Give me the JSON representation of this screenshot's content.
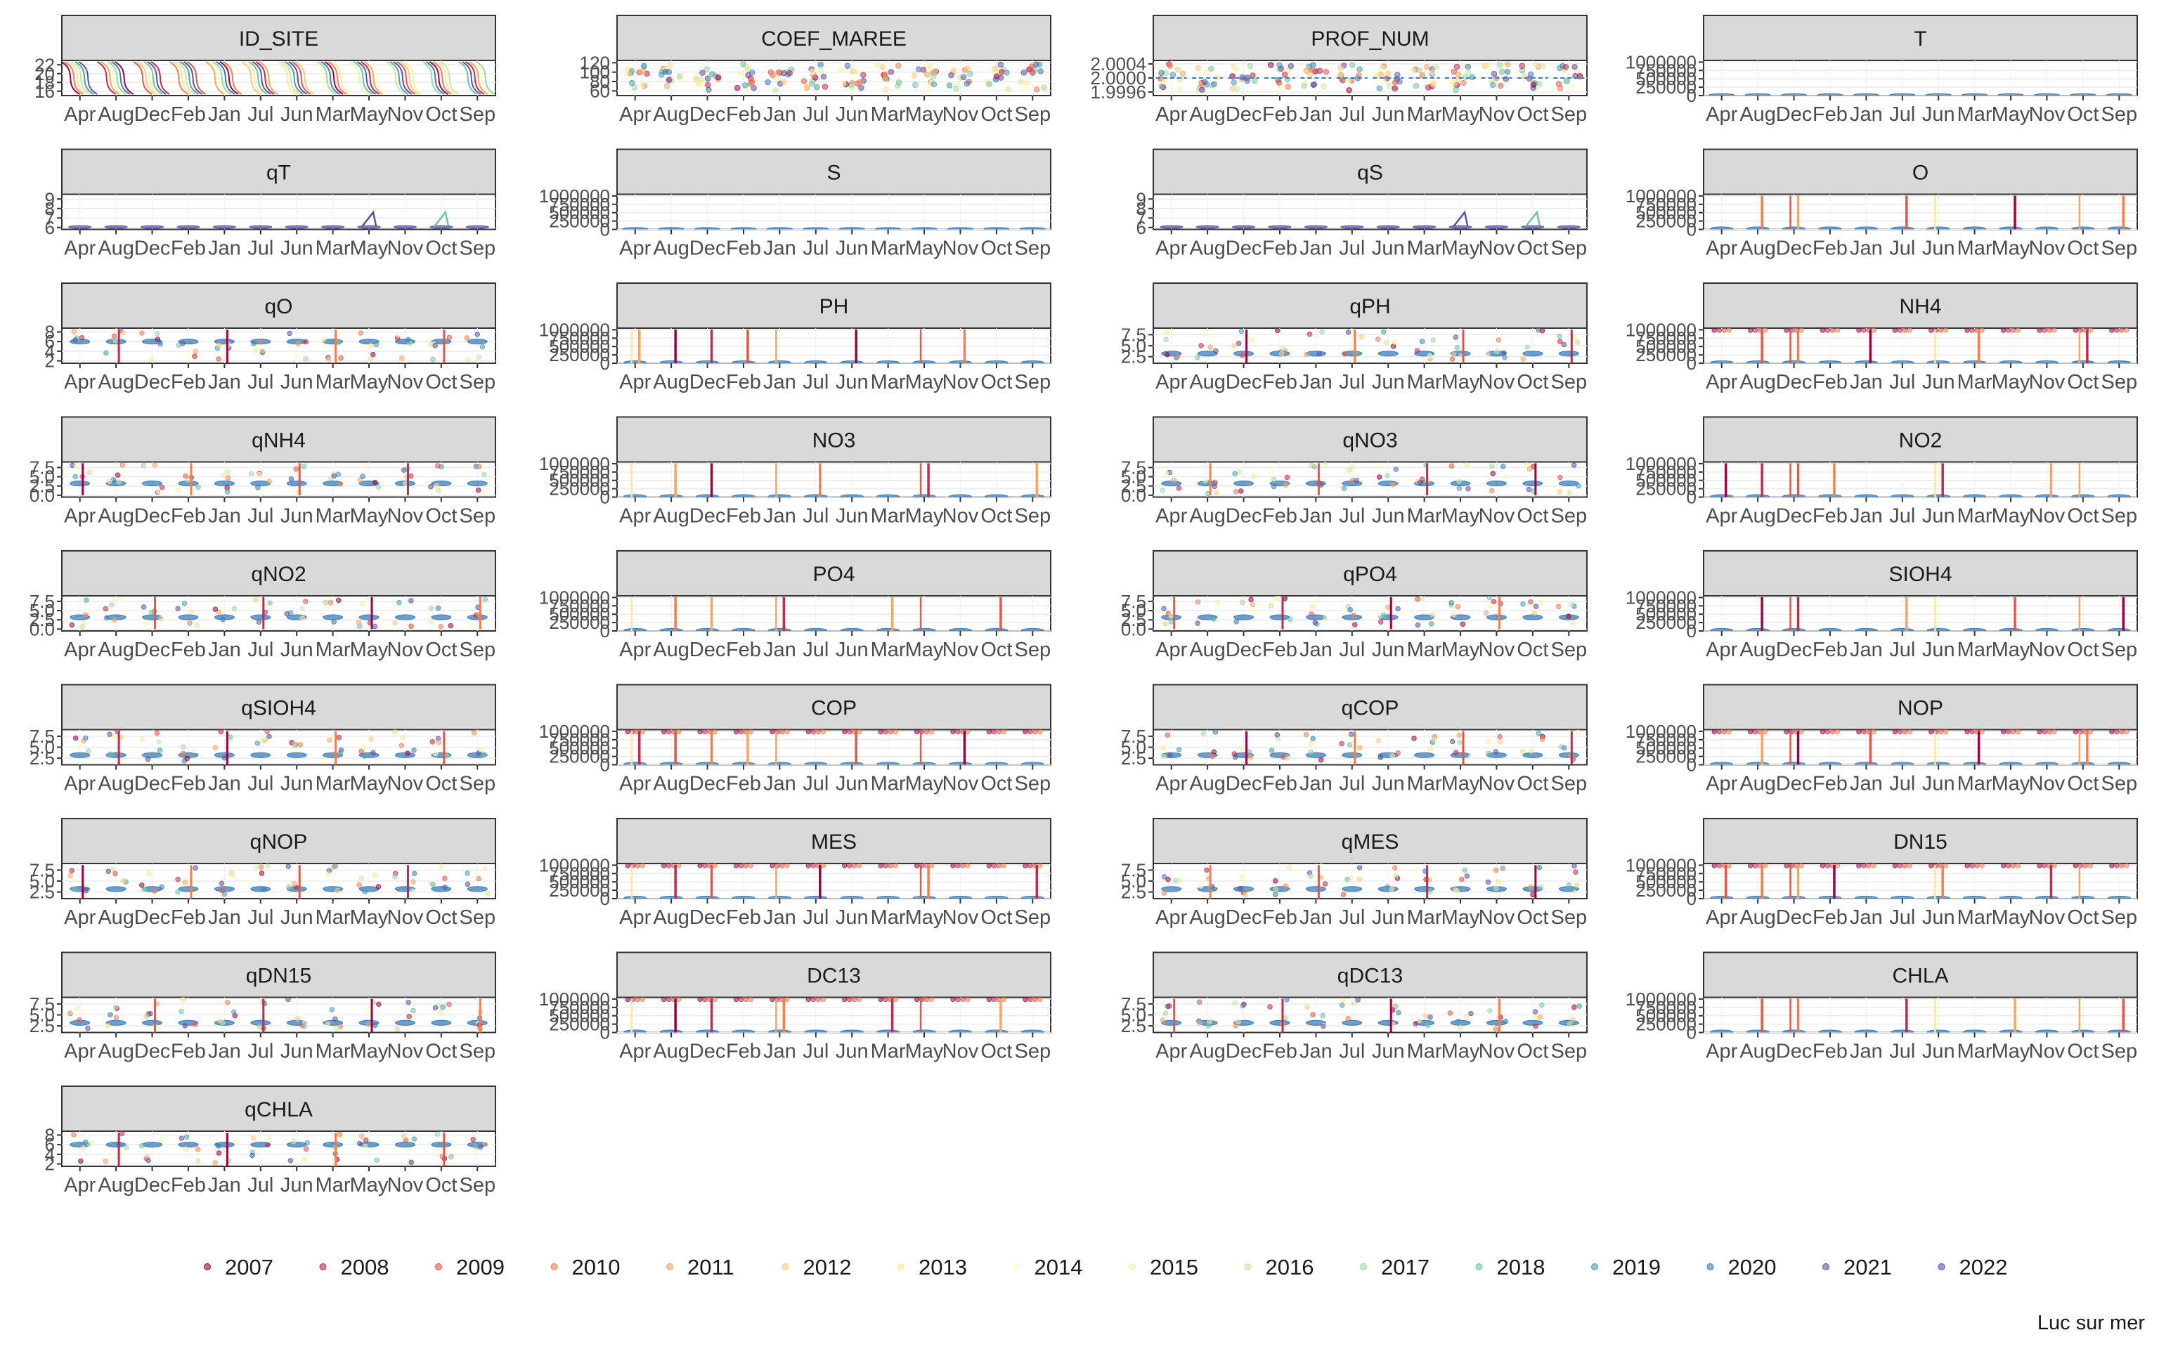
{
  "chart_data": {
    "type": "violin",
    "layout": "facet_wrap",
    "ncol": 4,
    "months": [
      "Apr",
      "Aug",
      "Dec",
      "Feb",
      "Jan",
      "Jul",
      "Jun",
      "Mar",
      "May",
      "Nov",
      "Oct",
      "Sep"
    ],
    "palette": [
      "#9E0142",
      "#C2294A",
      "#E55649",
      "#F67E4B",
      "#FBA45C",
      "#FECB7A",
      "#FEE794",
      "#FEFDBC",
      "#ECF7A2",
      "#CBE99D",
      "#9ED7A4",
      "#6DC4A4",
      "#47A0B3",
      "#3B7DB9",
      "#5758A6",
      "#5E4FA2"
    ],
    "facets": [
      {
        "title": "ID_SITE",
        "yticks": [
          "22",
          "20",
          "18",
          "16"
        ],
        "ylim": [
          15,
          23
        ],
        "kind": "site"
      },
      {
        "title": "COEF_MAREE",
        "yticks": [
          "120",
          "100",
          "80",
          "60"
        ],
        "ylim": [
          50,
          125
        ],
        "kind": "coef"
      },
      {
        "title": "PROF_NUM",
        "yticks": [
          "2.0004",
          "2.0000",
          "1.9996"
        ],
        "ylim": [
          1.9995,
          2.0005
        ],
        "kind": "prof"
      },
      {
        "title": "T",
        "yticks": [
          "1000000",
          "750000",
          "500000",
          "250000",
          "0"
        ],
        "ylim": [
          0,
          1050000
        ],
        "kind": "base"
      },
      {
        "title": "qT",
        "yticks": [
          "9",
          "8",
          "7",
          "6"
        ],
        "ylim": [
          5.8,
          9.5
        ],
        "kind": "qT"
      },
      {
        "title": "S",
        "yticks": [
          "1000000",
          "750000",
          "500000",
          "250000",
          "0"
        ],
        "ylim": [
          0,
          1050000
        ],
        "kind": "base"
      },
      {
        "title": "qS",
        "yticks": [
          "9",
          "8",
          "7",
          "6"
        ],
        "ylim": [
          5.8,
          9.5
        ],
        "kind": "qT"
      },
      {
        "title": "O",
        "yticks": [
          "1000000",
          "750000",
          "500000",
          "250000",
          "0"
        ],
        "ylim": [
          0,
          1050000
        ],
        "kind": "spikes"
      },
      {
        "title": "qO",
        "yticks": [
          "8",
          "6",
          "4",
          "2"
        ],
        "ylim": [
          1.5,
          8.8
        ],
        "kind": "q8"
      },
      {
        "title": "PH",
        "yticks": [
          "1000000",
          "750000",
          "500000",
          "250000",
          "0"
        ],
        "ylim": [
          0,
          1050000
        ],
        "kind": "spikes"
      },
      {
        "title": "qPH",
        "yticks": [
          "7.5",
          "5.0",
          "2.5"
        ],
        "ylim": [
          1.0,
          9.0
        ],
        "kind": "q75"
      },
      {
        "title": "NH4",
        "yticks": [
          "1000000",
          "750000",
          "500000",
          "250000",
          "0"
        ],
        "ylim": [
          0,
          1050000
        ],
        "kind": "ceiling"
      },
      {
        "title": "qNH4",
        "yticks": [
          "7.5",
          "5.0",
          "2.5",
          "0.0"
        ],
        "ylim": [
          -0.5,
          9.0
        ],
        "kind": "q75"
      },
      {
        "title": "NO3",
        "yticks": [
          "1000000",
          "750000",
          "500000",
          "250000",
          "0"
        ],
        "ylim": [
          0,
          1050000
        ],
        "kind": "spikes"
      },
      {
        "title": "qNO3",
        "yticks": [
          "7.5",
          "5.0",
          "2.5",
          "0.0"
        ],
        "ylim": [
          -0.5,
          9.0
        ],
        "kind": "q75"
      },
      {
        "title": "NO2",
        "yticks": [
          "1000000",
          "750000",
          "500000",
          "250000",
          "0"
        ],
        "ylim": [
          0,
          1050000
        ],
        "kind": "spikes"
      },
      {
        "title": "qNO2",
        "yticks": [
          "7.5",
          "5.0",
          "2.5",
          "0.0"
        ],
        "ylim": [
          -0.5,
          9.0
        ],
        "kind": "q75"
      },
      {
        "title": "PO4",
        "yticks": [
          "1000000",
          "750000",
          "500000",
          "250000",
          "0"
        ],
        "ylim": [
          0,
          1050000
        ],
        "kind": "spikes"
      },
      {
        "title": "qPO4",
        "yticks": [
          "7.5",
          "5.0",
          "2.5",
          "0.0"
        ],
        "ylim": [
          -0.5,
          9.0
        ],
        "kind": "q75"
      },
      {
        "title": "SIOH4",
        "yticks": [
          "1000000",
          "750000",
          "500000",
          "250000",
          "0"
        ],
        "ylim": [
          0,
          1050000
        ],
        "kind": "spikes"
      },
      {
        "title": "qSIOH4",
        "yticks": [
          "7.5",
          "5.0",
          "2.5"
        ],
        "ylim": [
          1.0,
          9.0
        ],
        "kind": "q75"
      },
      {
        "title": "COP",
        "yticks": [
          "1000000",
          "750000",
          "500000",
          "250000",
          "0"
        ],
        "ylim": [
          0,
          1050000
        ],
        "kind": "ceiling"
      },
      {
        "title": "qCOP",
        "yticks": [
          "7.5",
          "5.0",
          "2.5"
        ],
        "ylim": [
          1.0,
          9.0
        ],
        "kind": "q75"
      },
      {
        "title": "NOP",
        "yticks": [
          "1000000",
          "750000",
          "500000",
          "250000",
          "0"
        ],
        "ylim": [
          0,
          1050000
        ],
        "kind": "ceiling"
      },
      {
        "title": "qNOP",
        "yticks": [
          "7.5",
          "5.0",
          "2.5"
        ],
        "ylim": [
          1.0,
          9.0
        ],
        "kind": "q75"
      },
      {
        "title": "MES",
        "yticks": [
          "1000000",
          "750000",
          "500000",
          "250000",
          "0"
        ],
        "ylim": [
          0,
          1050000
        ],
        "kind": "ceiling"
      },
      {
        "title": "qMES",
        "yticks": [
          "7.5",
          "5.0",
          "2.5"
        ],
        "ylim": [
          1.0,
          9.0
        ],
        "kind": "q75"
      },
      {
        "title": "DN15",
        "yticks": [
          "1000000",
          "750000",
          "500000",
          "250000",
          "0"
        ],
        "ylim": [
          0,
          1050000
        ],
        "kind": "ceiling"
      },
      {
        "title": "qDN15",
        "yticks": [
          "7.5",
          "5.0",
          "2.5"
        ],
        "ylim": [
          1.0,
          9.0
        ],
        "kind": "q75"
      },
      {
        "title": "DC13",
        "yticks": [
          "1000000",
          "750000",
          "500000",
          "250000",
          "0"
        ],
        "ylim": [
          0,
          1050000
        ],
        "kind": "ceiling"
      },
      {
        "title": "qDC13",
        "yticks": [
          "7.5",
          "5.0",
          "2.5"
        ],
        "ylim": [
          1.0,
          9.0
        ],
        "kind": "q75"
      },
      {
        "title": "CHLA",
        "yticks": [
          "1000000",
          "750000",
          "500000",
          "250000",
          "0"
        ],
        "ylim": [
          0,
          1050000
        ],
        "kind": "spikes"
      },
      {
        "title": "qCHLA",
        "yticks": [
          "8",
          "6",
          "4",
          "2"
        ],
        "ylim": [
          1.5,
          8.8
        ],
        "kind": "q8"
      }
    ],
    "legend": {
      "placement": "bottom",
      "years": [
        "2007",
        "2008",
        "2009",
        "2010",
        "2011",
        "2012",
        "2013",
        "2014",
        "2015",
        "2016",
        "2017",
        "2018",
        "2019",
        "2020",
        "2021",
        "2022"
      ]
    },
    "caption": "Luc sur mer",
    "grid": true
  }
}
